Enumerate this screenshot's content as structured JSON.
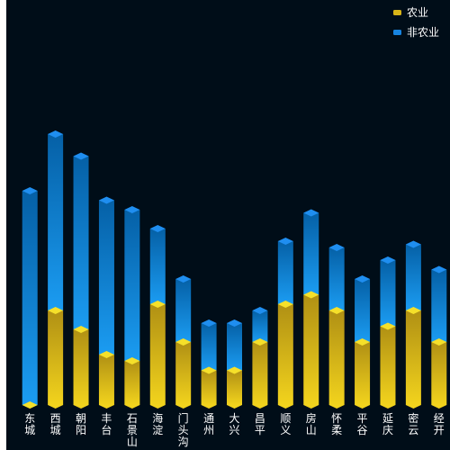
{
  "chart_data": {
    "type": "bar",
    "stacked": true,
    "style": "3d-cylinder",
    "categories": [
      "东城",
      "西城",
      "朝阳",
      "丰台",
      "石景山",
      "海淀",
      "门头沟",
      "通州",
      "大兴",
      "昌平",
      "顺义",
      "房山",
      "怀柔",
      "平谷",
      "延庆",
      "密云",
      "经开"
    ],
    "series": [
      {
        "name": "农业",
        "values": [
          0,
          30,
          24,
          16,
          14,
          32,
          20,
          11,
          11,
          20,
          32,
          35,
          30,
          20,
          25,
          30,
          20
        ]
      },
      {
        "name": "非农业",
        "values": [
          68,
          56,
          55,
          49,
          48,
          24,
          20,
          15,
          15,
          10,
          20,
          26,
          20,
          20,
          21,
          21,
          23
        ]
      }
    ],
    "colors": {
      "农业": [
        "#b09014",
        "#f2d31d"
      ],
      "农业_top": "#f5e02a",
      "非农业": [
        "#0560a6",
        "#1b9cf2"
      ],
      "非农业_top": "#1f8ef0",
      "background": "#000d18"
    },
    "ylim": [
      0,
      100
    ],
    "grid": false,
    "legend": {
      "position": "top-right",
      "items": [
        {
          "label": "农业",
          "color": "#d8b418"
        },
        {
          "label": "非农业",
          "color": "#1784e0"
        }
      ]
    },
    "title": "",
    "xlabel": "",
    "ylabel": ""
  }
}
